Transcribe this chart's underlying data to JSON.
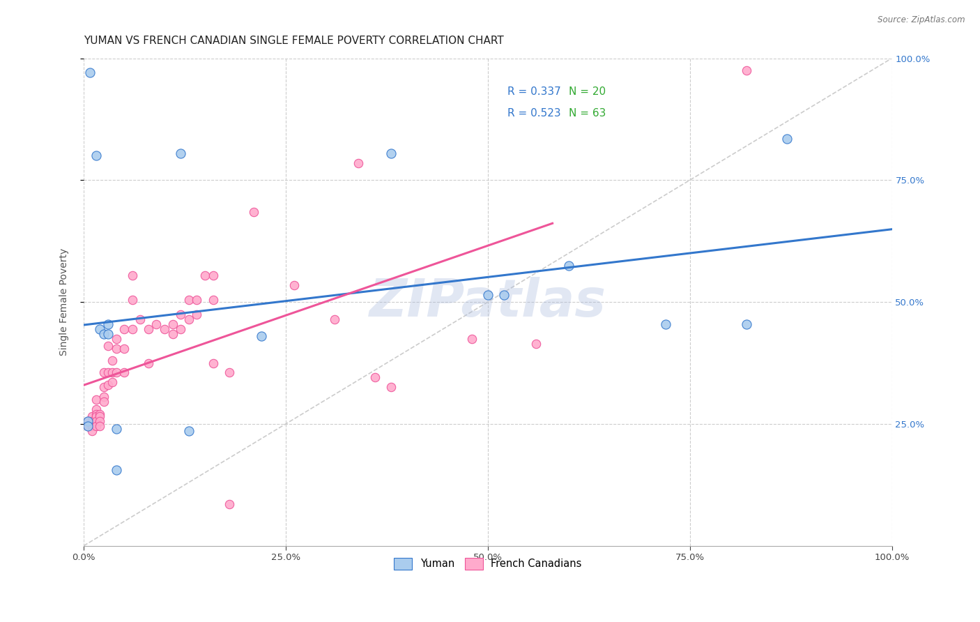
{
  "title": "YUMAN VS FRENCH CANADIAN SINGLE FEMALE POVERTY CORRELATION CHART",
  "source": "Source: ZipAtlas.com",
  "ylabel": "Single Female Poverty",
  "watermark": "ZIPatlas",
  "yuman_R": 0.337,
  "yuman_N": 20,
  "fc_R": 0.523,
  "fc_N": 63,
  "yuman_color": "#aaccee",
  "fc_color": "#ffaacc",
  "yuman_line_color": "#3377cc",
  "fc_line_color": "#ee5599",
  "diagonal_color": "#cccccc",
  "yuman_points": [
    [
      0.008,
      0.97
    ],
    [
      0.015,
      0.8
    ],
    [
      0.02,
      0.445
    ],
    [
      0.025,
      0.435
    ],
    [
      0.03,
      0.455
    ],
    [
      0.03,
      0.435
    ],
    [
      0.04,
      0.155
    ],
    [
      0.04,
      0.24
    ],
    [
      0.005,
      0.255
    ],
    [
      0.005,
      0.245
    ],
    [
      0.12,
      0.805
    ],
    [
      0.13,
      0.235
    ],
    [
      0.22,
      0.43
    ],
    [
      0.38,
      0.805
    ],
    [
      0.5,
      0.515
    ],
    [
      0.52,
      0.515
    ],
    [
      0.6,
      0.575
    ],
    [
      0.72,
      0.455
    ],
    [
      0.82,
      0.455
    ],
    [
      0.87,
      0.835
    ]
  ],
  "fc_points": [
    [
      0.005,
      0.255
    ],
    [
      0.005,
      0.245
    ],
    [
      0.01,
      0.265
    ],
    [
      0.01,
      0.255
    ],
    [
      0.01,
      0.245
    ],
    [
      0.01,
      0.235
    ],
    [
      0.015,
      0.3
    ],
    [
      0.015,
      0.28
    ],
    [
      0.015,
      0.27
    ],
    [
      0.015,
      0.265
    ],
    [
      0.015,
      0.255
    ],
    [
      0.015,
      0.245
    ],
    [
      0.02,
      0.27
    ],
    [
      0.02,
      0.265
    ],
    [
      0.02,
      0.255
    ],
    [
      0.02,
      0.245
    ],
    [
      0.025,
      0.355
    ],
    [
      0.025,
      0.325
    ],
    [
      0.025,
      0.305
    ],
    [
      0.025,
      0.295
    ],
    [
      0.03,
      0.41
    ],
    [
      0.03,
      0.355
    ],
    [
      0.03,
      0.33
    ],
    [
      0.035,
      0.38
    ],
    [
      0.035,
      0.355
    ],
    [
      0.035,
      0.335
    ],
    [
      0.04,
      0.425
    ],
    [
      0.04,
      0.405
    ],
    [
      0.04,
      0.355
    ],
    [
      0.05,
      0.445
    ],
    [
      0.05,
      0.405
    ],
    [
      0.05,
      0.355
    ],
    [
      0.06,
      0.555
    ],
    [
      0.06,
      0.505
    ],
    [
      0.06,
      0.445
    ],
    [
      0.07,
      0.465
    ],
    [
      0.08,
      0.445
    ],
    [
      0.08,
      0.375
    ],
    [
      0.09,
      0.455
    ],
    [
      0.1,
      0.445
    ],
    [
      0.11,
      0.455
    ],
    [
      0.11,
      0.435
    ],
    [
      0.12,
      0.475
    ],
    [
      0.12,
      0.445
    ],
    [
      0.13,
      0.505
    ],
    [
      0.13,
      0.465
    ],
    [
      0.14,
      0.505
    ],
    [
      0.14,
      0.475
    ],
    [
      0.15,
      0.555
    ],
    [
      0.16,
      0.555
    ],
    [
      0.16,
      0.505
    ],
    [
      0.16,
      0.375
    ],
    [
      0.18,
      0.355
    ],
    [
      0.18,
      0.085
    ],
    [
      0.21,
      0.685
    ],
    [
      0.26,
      0.535
    ],
    [
      0.31,
      0.465
    ],
    [
      0.34,
      0.785
    ],
    [
      0.36,
      0.345
    ],
    [
      0.38,
      0.325
    ],
    [
      0.48,
      0.425
    ],
    [
      0.56,
      0.415
    ],
    [
      0.82,
      0.975
    ]
  ],
  "xlim": [
    0.0,
    1.0
  ],
  "ylim": [
    0.0,
    1.0
  ],
  "x_ticks": [
    0.0,
    0.25,
    0.5,
    0.75,
    1.0
  ],
  "x_tick_labels": [
    "0.0%",
    "25.0%",
    "50.0%",
    "75.0%",
    "100.0%"
  ],
  "y_ticks": [
    0.25,
    0.5,
    0.75,
    1.0
  ],
  "y_tick_labels_right": [
    "25.0%",
    "50.0%",
    "75.0%",
    "100.0%"
  ],
  "legend_R_color": "#3377cc",
  "legend_N_color": "#33aa33",
  "title_fontsize": 11,
  "axis_label_fontsize": 10,
  "tick_fontsize": 9.5,
  "right_tick_color": "#3377cc"
}
